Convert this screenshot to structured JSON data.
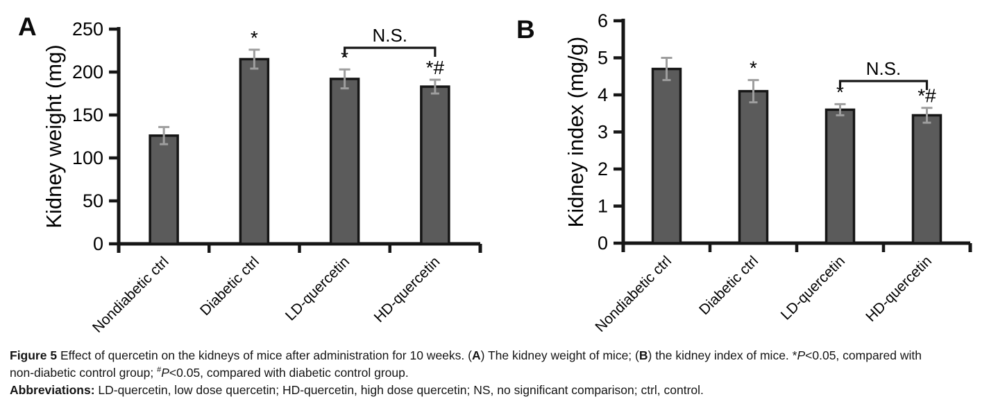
{
  "figure": {
    "panels": [
      {
        "label": "A"
      },
      {
        "label": "B"
      }
    ],
    "caption": {
      "para1": [
        {
          "s": "bold",
          "t": "Figure 5"
        },
        {
          "s": "normal",
          "t": " Effect of quercetin on the kidneys of mice after administration for 10 weeks. ("
        },
        {
          "s": "bold",
          "t": "A"
        },
        {
          "s": "normal",
          "t": ") The kidney weight of mice; ("
        },
        {
          "s": "bold",
          "t": "B"
        },
        {
          "s": "normal",
          "t": ") the kidney index of mice. *"
        },
        {
          "s": "italic",
          "t": "P"
        },
        {
          "s": "normal",
          "t": "<0.05, compared with"
        },
        {
          "s": "br",
          "t": ""
        },
        {
          "s": "normal",
          "t": "non-diabetic control group; "
        },
        {
          "s": "sup",
          "t": "#"
        },
        {
          "s": "italic",
          "t": "P"
        },
        {
          "s": "normal",
          "t": "<0.05, compared with diabetic control group."
        }
      ],
      "para2": [
        {
          "s": "bold",
          "t": "Abbreviations:"
        },
        {
          "s": "normal",
          "t": " LD-quercetin, low dose quercetin; HD-quercetin, high dose quercetin; NS, no significant comparison; ctrl, control."
        }
      ]
    }
  },
  "chart_data": [
    {
      "type": "bar",
      "panel": "A",
      "title": "",
      "xlabel": "",
      "ylabel": "Kidney weight (mg)",
      "categories": [
        "Nondiabetic ctrl",
        "Diabetic ctrl",
        "LD-quercetin",
        "HD-quercetin"
      ],
      "values": [
        126,
        215,
        192,
        183
      ],
      "errors": [
        10,
        11,
        11,
        8
      ],
      "significance": [
        "",
        "*",
        "*",
        "*#"
      ],
      "ylim": [
        0,
        250
      ],
      "ytick_step": 50,
      "grid": "off",
      "legend": "none",
      "comparison_bracket": {
        "from": 2,
        "to": 3,
        "label": "N.S."
      }
    },
    {
      "type": "bar",
      "panel": "B",
      "title": "",
      "xlabel": "",
      "ylabel": "Kidney index (mg/g)",
      "categories": [
        "Nondiabetic ctrl",
        "Diabetic ctrl",
        "LD-quercetin",
        "HD-quercetin"
      ],
      "values": [
        4.7,
        4.1,
        3.6,
        3.45
      ],
      "errors": [
        0.3,
        0.3,
        0.15,
        0.2
      ],
      "significance": [
        "",
        "*",
        "*",
        "*#"
      ],
      "ylim": [
        0,
        6
      ],
      "ytick_step": 1,
      "grid": "off",
      "legend": "none",
      "comparison_bracket": {
        "from": 2,
        "to": 3,
        "label": "N.S."
      }
    }
  ],
  "colors": {
    "background": "#ffffff",
    "bar_fill": "#5b5b5b",
    "bar_stroke": "#161616",
    "error_bar": "#9e9e9e",
    "axis": "#161616",
    "text": "#000000"
  }
}
